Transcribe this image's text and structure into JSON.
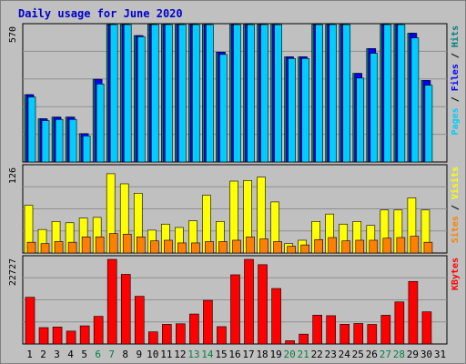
{
  "chart_data": {
    "type": "bar",
    "title": "Daily usage for June 2020",
    "x": [
      "1",
      "2",
      "3",
      "4",
      "5",
      "6",
      "7",
      "8",
      "9",
      "10",
      "11",
      "12",
      "13",
      "14",
      "15",
      "16",
      "17",
      "18",
      "19",
      "20",
      "21",
      "22",
      "23",
      "24",
      "25",
      "26",
      "27",
      "28",
      "29",
      "30",
      "31"
    ],
    "weekend_days": [
      "6",
      "7",
      "13",
      "14",
      "20",
      "21",
      "27",
      "28"
    ],
    "panels": [
      {
        "name": "top",
        "scale_max": 570,
        "scale_label": "570",
        "series": [
          {
            "name": "Hits",
            "color": "#008080",
            "values": [
              285,
              183,
              190,
              190,
              120,
              350,
              860,
              835,
              535,
              600,
              640,
              605,
              600,
              820,
              465,
              630,
              875,
              665,
              665,
              445,
              445,
              680,
              700,
              665,
              375,
              480,
              660,
              680,
              545,
              345,
              0
            ]
          },
          {
            "name": "Files",
            "color": "#0000ff",
            "values": [
              285,
              183,
              190,
              190,
              120,
              350,
              860,
              835,
              535,
              600,
              640,
              605,
              600,
              820,
              465,
              630,
              875,
              665,
              665,
              445,
              445,
              680,
              700,
              665,
              375,
              480,
              660,
              680,
              545,
              345,
              0
            ]
          },
          {
            "name": "Pages",
            "color": "#00ccff",
            "values": [
              275,
              175,
              180,
              180,
              110,
              330,
              840,
              825,
              530,
              590,
              630,
              598,
              592,
              810,
              455,
              625,
              755,
              650,
              662,
              438,
              438,
              670,
              665,
              630,
              355,
              460,
              652,
              655,
              525,
              325,
              0
            ]
          }
        ],
        "legend_labels": [
          {
            "text": "Pages",
            "color": "#00ccff"
          },
          {
            "text": " / ",
            "color": "#000000"
          },
          {
            "text": "Files",
            "color": "#0000ff"
          },
          {
            "text": " / ",
            "color": "#000000"
          },
          {
            "text": "Hits",
            "color": "#008080"
          }
        ]
      },
      {
        "name": "middle",
        "scale_max": 126,
        "scale_label": "126",
        "series": [
          {
            "name": "Visits",
            "color": "#ffff00",
            "values": [
              71,
              35,
              47,
              45,
              52,
              53,
              118,
              103,
              89,
              34,
              43,
              38,
              48,
              86,
              47,
              107,
              108,
              113,
              76,
              14,
              19,
              47,
              58,
              43,
              47,
              41,
              64,
              64,
              82,
              64,
              0
            ]
          },
          {
            "name": "Sites",
            "color": "#ff8000",
            "values": [
              16,
              14,
              17,
              16,
              24,
              24,
              29,
              28,
              24,
              18,
              19,
              15,
              15,
              17,
              17,
              19,
              24,
              21,
              17,
              10,
              12,
              20,
              23,
              18,
              19,
              19,
              22,
              23,
              25,
              16,
              0
            ]
          }
        ],
        "legend_labels": [
          {
            "text": "Sites",
            "color": "#ff8000"
          },
          {
            "text": " / ",
            "color": "#000000"
          },
          {
            "text": "Visits",
            "color": "#ffff00"
          }
        ]
      },
      {
        "name": "bottom",
        "scale_max": 22727,
        "scale_label": "22727",
        "series": [
          {
            "name": "KBytes",
            "color": "#ff0000",
            "values": [
              12550,
              4400,
              4550,
              3460,
              4870,
              7420,
              22727,
              18700,
              12800,
              3260,
              5280,
              5420,
              8050,
              11720,
              4660,
              18580,
              22727,
              21300,
              14900,
              876,
              2650,
              7740,
              7600,
              5300,
              5500,
              5250,
              7720,
              11300,
              16800,
              8640,
              0
            ]
          }
        ],
        "legend_labels": [
          {
            "text": "KBytes",
            "color": "#ff0000"
          }
        ]
      }
    ]
  }
}
